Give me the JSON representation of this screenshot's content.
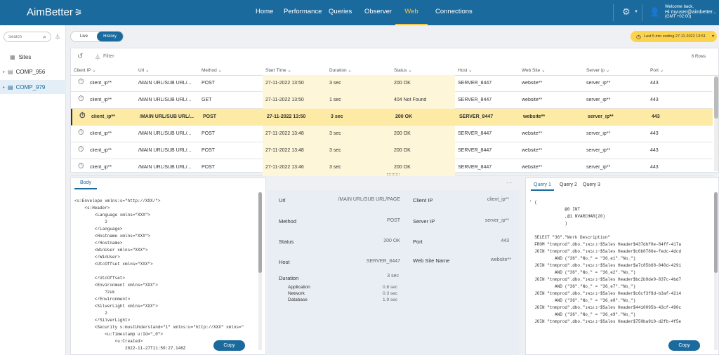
{
  "app": {
    "logo": "AimBetter",
    "welcome_line1": "Welcome back,",
    "welcome_line2": "Hi myuser@aimbetter...",
    "welcome_line3": "(GMT +02:00)"
  },
  "nav": [
    "Home",
    "Performance",
    "Queries",
    "Observer",
    "Web",
    "Connections"
  ],
  "sidebar": {
    "search_placeholder": "Search",
    "items": [
      "Sites",
      "COMP_956",
      "COMP_979"
    ]
  },
  "mode": {
    "live": "Live",
    "history": "History"
  },
  "time_filter": "Last 5 min ending  27-11-2022 13:51",
  "grid": {
    "filter": "Filter",
    "row_count": "6 Rows",
    "columns": [
      "Client IP",
      "Url",
      "Method",
      "Start Time",
      "Duration",
      "Status",
      "Host",
      "Web Site",
      "Server ip",
      "Port"
    ],
    "rows": [
      [
        "client_ip**",
        "/MAIN URL/SUB URL/...",
        "POST",
        "27-11-2022 13:50",
        "3 sec",
        "200 OK",
        "SERVER_8447",
        "website**",
        "server_ip**",
        "443"
      ],
      [
        "client_ip**",
        "/MAIN URL/SUB URL/...",
        "GET",
        "27-11-2022 13:50",
        "1 sec",
        "404 Not Found",
        "SERVER_8447",
        "website**",
        "server_ip**",
        "443"
      ],
      [
        "client_ip**",
        "/MAIN URL/SUB URL/...",
        "POST",
        "27-11-2022 13:50",
        "3 sec",
        "200 OK",
        "SERVER_8447",
        "website**",
        "server_ip**",
        "443"
      ],
      [
        "client_ip**",
        "/MAIN URL/SUB URL/...",
        "POST",
        "27-11-2022 13:48",
        "3 sec",
        "200 OK",
        "SERVER_8447",
        "website**",
        "server_ip**",
        "443"
      ],
      [
        "client_ip**",
        "/MAIN URL/SUB URL/...",
        "POST",
        "27-11-2022 13:48",
        "3 sec",
        "200 OK",
        "SERVER_8447",
        "website**",
        "server_ip**",
        "443"
      ],
      [
        "client_ip**",
        "/MAIN URL/SUB URL/...",
        "POST",
        "27-11-2022 13:46",
        "3 sec",
        "200 OK",
        "SERVER_8447",
        "website**",
        "server_ip**",
        "443"
      ]
    ]
  },
  "body": {
    "tab": "Body",
    "copy": "Copy",
    "lines": [
      "<s:Envelope xmlns:s=\"http://XXX/\">",
      "    <s:Header>",
      "        <Language xmlns=\"XXX\">",
      "            2",
      "        </Language>",
      "        <Hostname xmlns=\"XXX\">",
      "        </Hostname>",
      "        <WinUser xmlns=\"XXX\">",
      "        </WinUser>",
      "        <UtcOffset xmlns=\"XXX\">",
      "",
      "        </UtcOffset>",
      "        <Environment xmlns=\"XXX\">",
      "            ?zuk",
      "        </Environment>",
      "        <SilverLight xmlns=\"XXX\">",
      "            2",
      "        </SilverLight>",
      "        <Security s:mustUnderstand=\"1\" xmlns:u=\"http://XXX\" xmlns=\"",
      "            <u:Timestamp u:Id=\"_0\">",
      "                <u:Created>",
      "                    2022-11-27T11:50:27.146Z"
    ]
  },
  "detail": {
    "url_label": "Url",
    "url_value": "/MAIN URL/SUB URL/PAGE",
    "client_label": "Client IP",
    "client_value": "client_ip**",
    "method_label": "Method",
    "method_value": "POST",
    "server_label": "Server IP",
    "server_value": "server_ip**",
    "status_label": "Status",
    "status_value": "200 OK",
    "port_label": "Port",
    "port_value": "443",
    "host_label": "Host",
    "host_value": "SERVER_8447",
    "site_label": "Web Site Name",
    "site_value": "website**",
    "duration_label": "Duration",
    "duration_value": "3 sec",
    "app_label": "Application",
    "app_value": "0.8 sec",
    "net_label": "Network",
    "net_value": "0.3 sec",
    "db_label": "Database",
    "db_value": "1.9 sec"
  },
  "query": {
    "tabs": [
      "Query 1",
      "Query 2",
      "Query 3"
    ],
    "copy": "Copy",
    "lines": [
      "' (",
      "              @0 INT",
      "              ,@1 NVARCHAR(20)",
      "              )",
      "",
      "  SELECT \"36\".\"Work Description\"",
      "  FROM \"tnmprod\".dbo.\"ינובאנ$Sales Header$437dbf0e-84ff-417a",
      "  JOIN \"tnmprod\".dbo.\"ינובאנ$Sales Header$c6b8786e-fedc-4dcd",
      "          AND (\"36\".\"No_\" = \"36_e1\".\"No_\")",
      "  JOIN \"tnmprod\".dbo.\"ינובאנ$Sales Header$a7c85b68-040d-4291",
      "          AND (\"36\".\"No_\" = \"36_e2\".\"No_\")",
      "  JOIN \"tnmprod\".dbo.\"ינובאנ$Sales Header$bc2b9de9-837c-4bd7",
      "          AND (\"36\".\"No_\" = \"36_e7\".\"No_\")",
      "  JOIN \"tnmprod\".dbo.\"ינובאנ$Sales Header$c6cf3f8d-b3af-4214",
      "          AND (\"36\".\"No_\" = \"36_e8\".\"No_\")",
      "  JOIN \"tnmprod\".dbo.\"ינובאנ$Sales Header$4410095b-43cf-490c",
      "          AND (\"36\".\"No_\" = \"36_e9\".\"No_\")",
      "  JOIN \"tnmprod\".dbo.\"ינובאנ$Sales Header$750ba910-d2fb-4f5e"
    ]
  }
}
